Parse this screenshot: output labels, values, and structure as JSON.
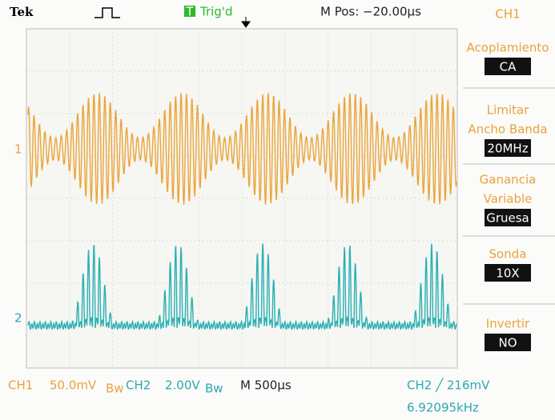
{
  "header": {
    "brand": "Tek",
    "trigger_marker": "T",
    "trigger_status": "Trig'd",
    "position": "M Pos: −20.00µs"
  },
  "menu": {
    "title": "CH1",
    "items": [
      {
        "label": [
          "Acoplamiento"
        ],
        "value": "CA"
      },
      {
        "label": [
          "Limitar",
          "Ancho Banda"
        ],
        "value": "20MHz"
      },
      {
        "label": [
          "Ganancia",
          "Variable"
        ],
        "value": "Gruesa"
      },
      {
        "label": [
          "Sonda"
        ],
        "value": "10X"
      },
      {
        "label": [
          "Invertir"
        ],
        "value": "NO"
      }
    ]
  },
  "markers": {
    "ch1": "1",
    "ch2": "2"
  },
  "footer": {
    "ch1": "CH1",
    "ch1_scale": "50.0mV",
    "ch1_bw": "Bw",
    "ch2": "CH2",
    "ch2_scale": "2.00V",
    "ch2_bw": "Bw",
    "timebase": "M 500µs",
    "trigger": "CH2 ╱ 216mV",
    "frequency": "6.92095kHz"
  }
}
